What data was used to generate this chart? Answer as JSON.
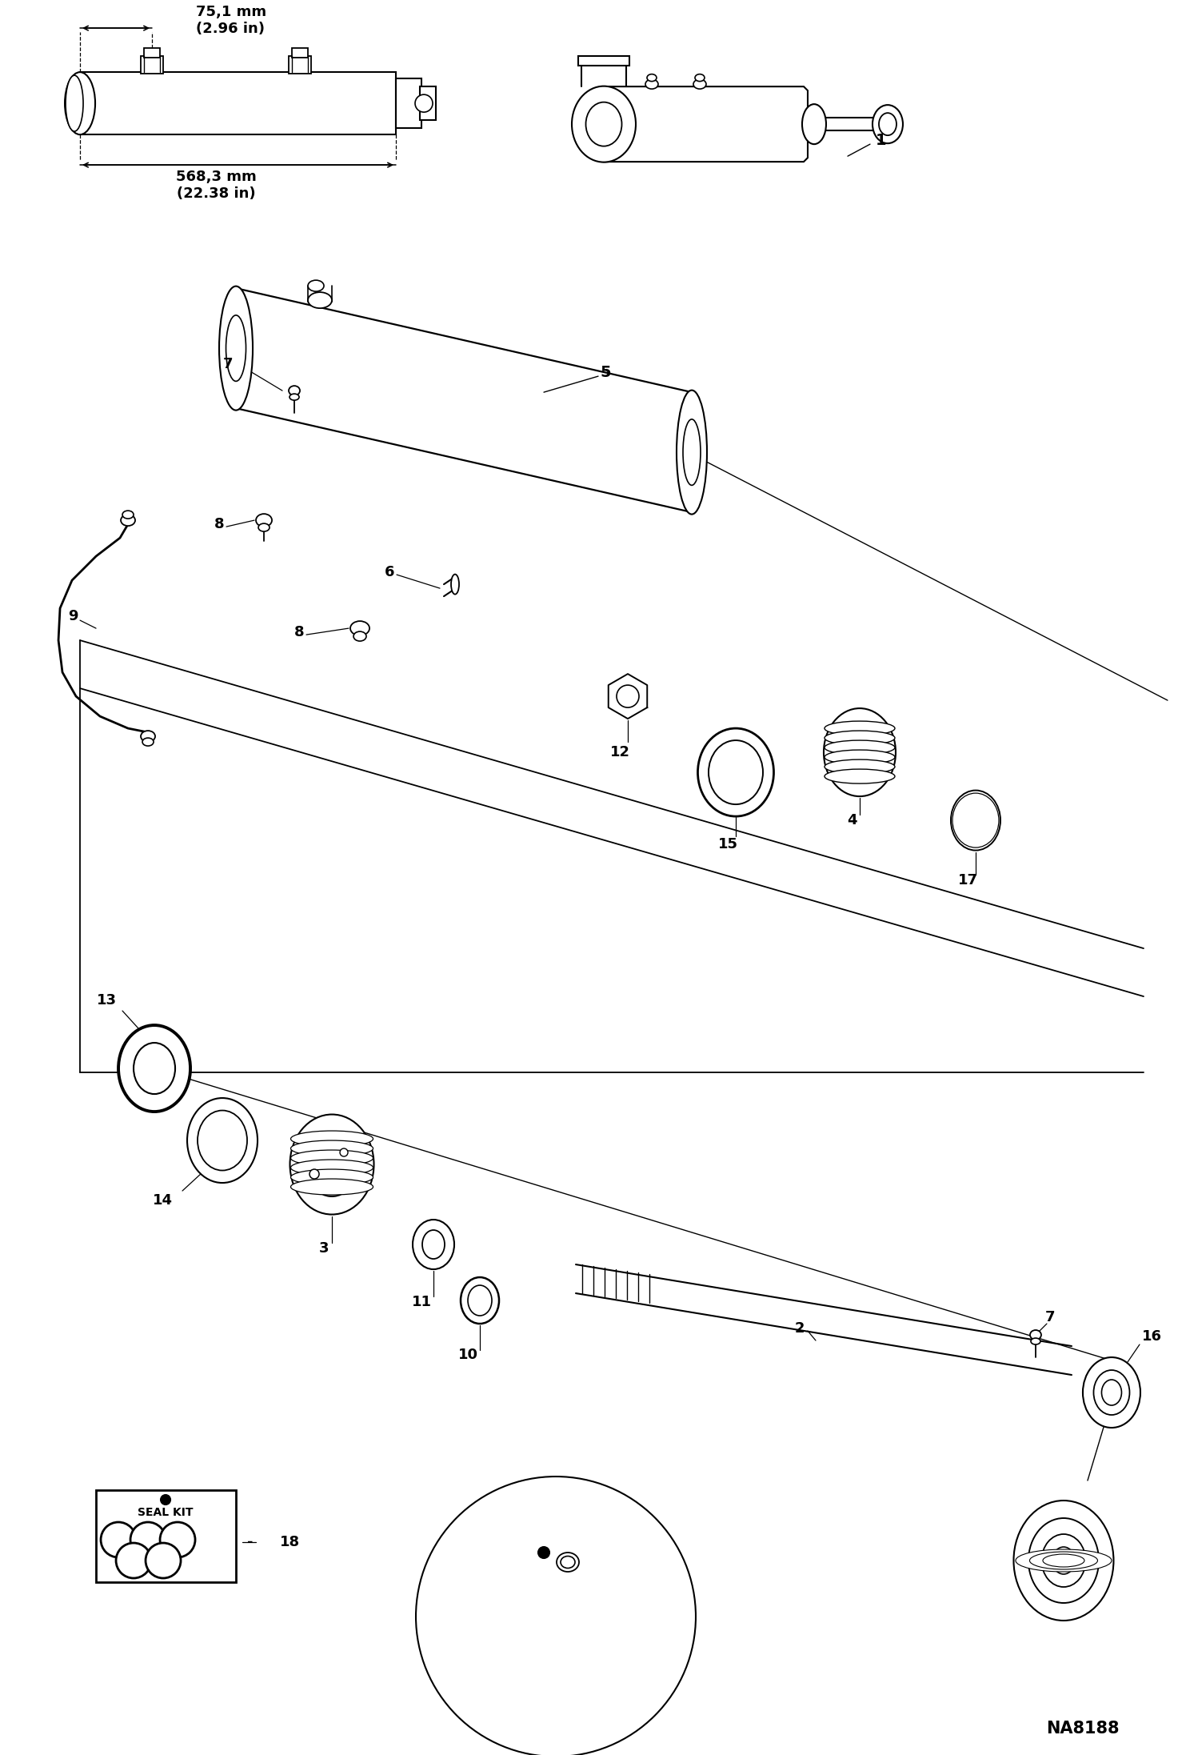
{
  "bg_color": "#ffffff",
  "line_color": "#000000",
  "fig_width": 14.98,
  "fig_height": 21.93,
  "dpi": 100,
  "dim_text_1": "75,1 mm\n(2.96 in)",
  "dim_text_2": "568,3 mm\n(22.38 in)",
  "ref_code": "NA8188",
  "seal_kit_text": "SEAL KIT"
}
